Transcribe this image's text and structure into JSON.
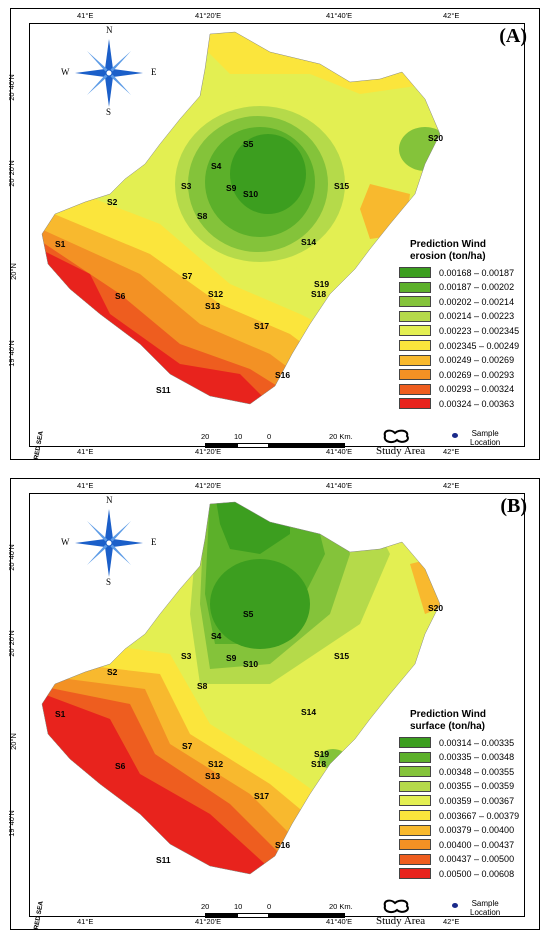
{
  "panels": [
    {
      "label": "(A)",
      "legend_title_lines": [
        "Prediction Wind",
        "erosion (ton/ha)"
      ],
      "classes": [
        {
          "range": "0.00168 – 0.00187",
          "color": "#3c9e1f"
        },
        {
          "range": "0.00187 – 0.00202",
          "color": "#5cb02a"
        },
        {
          "range": "0.00202 – 0.00214",
          "color": "#84c33a"
        },
        {
          "range": "0.00214 – 0.00223",
          "color": "#b5da4a"
        },
        {
          "range": "0.00223 – 0.002345",
          "color": "#e3ef52"
        },
        {
          "range": "0.002345 – 0.00249",
          "color": "#fbe53c"
        },
        {
          "range": "0.00249 – 0.00269",
          "color": "#f8b92e"
        },
        {
          "range": "0.00269 – 0.00293",
          "color": "#f39124"
        },
        {
          "range": "0.00293 – 0.00324",
          "color": "#ee5d1f"
        },
        {
          "range": "0.00324 – 0.00363",
          "color": "#e8231d"
        }
      ]
    },
    {
      "label": "(B)",
      "legend_title_lines": [
        "Prediction Wind",
        "surface (ton/ha)"
      ],
      "classes": [
        {
          "range": "0.00314 – 0.00335",
          "color": "#3c9e1f"
        },
        {
          "range": "0.00335 – 0.00348",
          "color": "#5cb02a"
        },
        {
          "range": "0.00348 – 0.00355",
          "color": "#84c33a"
        },
        {
          "range": "0.00355 – 0.00359",
          "color": "#b5da4a"
        },
        {
          "range": "0.00359 – 0.00367",
          "color": "#e3ef52"
        },
        {
          "range": "0.003667 – 0.00379",
          "color": "#fbe53c"
        },
        {
          "range": "0.00379 – 0.00400",
          "color": "#f8b92e"
        },
        {
          "range": "0.00400 – 0.00437",
          "color": "#f39124"
        },
        {
          "range": "0.00437 – 0.00500",
          "color": "#ee5d1f"
        },
        {
          "range": "0.00500 – 0.00608",
          "color": "#e8231d"
        }
      ]
    }
  ],
  "lon_ticks": [
    "41°E",
    "41°20'E",
    "41°40'E",
    "42°E"
  ],
  "lat_ticks": [
    "20°40'N",
    "20°20'N",
    "20°N",
    "19°40'N"
  ],
  "compass": {
    "n": "N",
    "s": "S",
    "e": "E",
    "w": "W",
    "icon": "compass-rose-icon"
  },
  "scale_bar": {
    "labels": [
      "20",
      "10",
      "0",
      "20 Km."
    ]
  },
  "study_area_label": "Study Area",
  "sample_location_label": "Sample Location",
  "sample_location_lines": [
    "Sample",
    "Location"
  ],
  "sea_label": "RED SEA",
  "sites": [
    "S1",
    "S2",
    "S3",
    "S4",
    "S5",
    "S6",
    "S7",
    "S8",
    "S9",
    "S10",
    "S11",
    "S12",
    "S13",
    "S14",
    "S15",
    "S16",
    "S17",
    "S18",
    "S19",
    "S20"
  ]
}
